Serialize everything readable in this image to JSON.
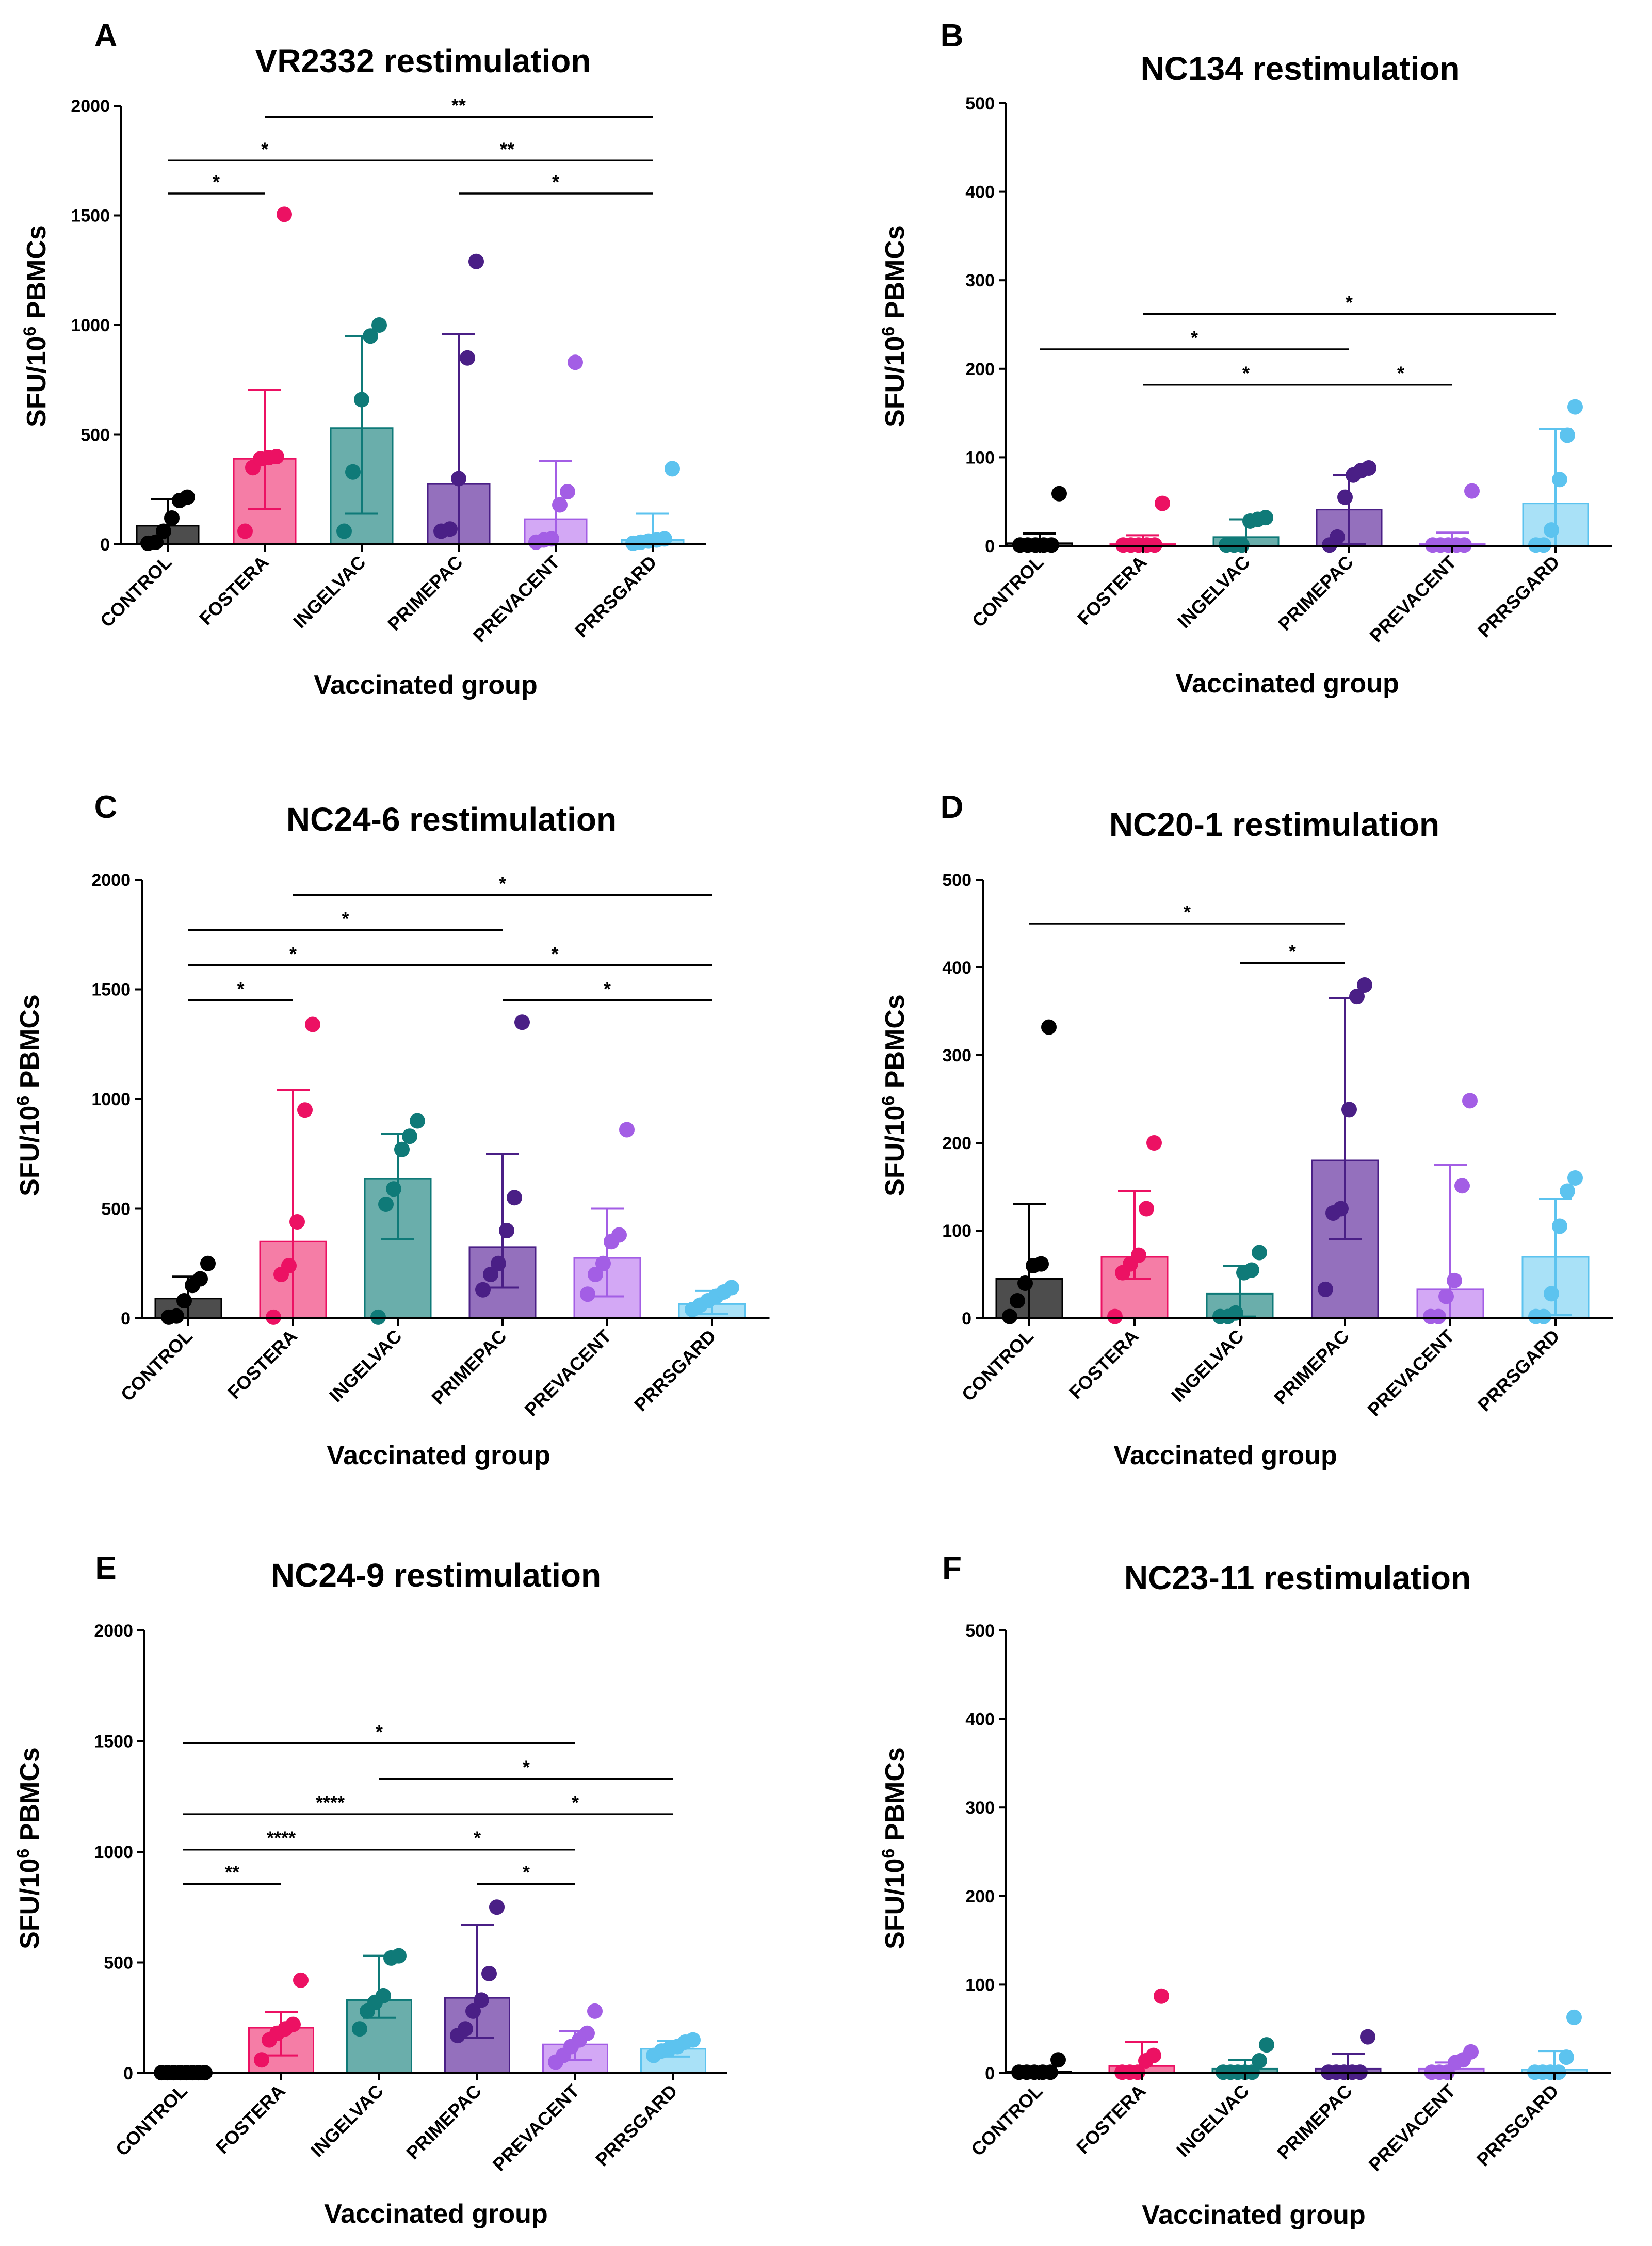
{
  "figure": {
    "x_axis_title": "Vaccinated group",
    "y_axis_title_base": "SFU/10",
    "y_axis_title_sup": "6",
    "y_axis_title_unit": " PBMCs"
  },
  "palette": {
    "CONTROL": {
      "bar": "#4d4d4d",
      "err": "#000000",
      "dot": "#000000"
    },
    "FOSTERA": {
      "bar": "#f57da6",
      "err": "#ec1163",
      "dot": "#ec1163"
    },
    "INGELVAC": {
      "bar": "#6aaeab",
      "err": "#0f7a78",
      "dot": "#0f7a78"
    },
    "PRIMEPAC": {
      "bar": "#9470bd",
      "err": "#4a1f86",
      "dot": "#4a1f86"
    },
    "PREVACENT": {
      "bar": "#d3a8f5",
      "err": "#a35ee5",
      "dot": "#a35ee5"
    },
    "PRRSGARD": {
      "bar": "#a9e1f7",
      "err": "#5cc3ef",
      "dot": "#5cc3ef"
    }
  },
  "chart_data": [
    {
      "panel": "A",
      "type": "bar",
      "title": "VR2332 restimulation",
      "xlabel": "Vaccinated group",
      "ylabel": "SFU/10^6 PBMCs",
      "ylim": [
        0,
        2000
      ],
      "yticks": [
        "0",
        "500",
        "1000",
        "1500",
        "2000"
      ],
      "categories": [
        "CONTROL",
        "FOSTERA",
        "INGELVAC",
        "PRIMEPAC",
        "PREVACENT",
        "PRRSGARD"
      ],
      "means": [
        85,
        390,
        530,
        275,
        115,
        20
      ],
      "err_upper": [
        205,
        705,
        950,
        960,
        380,
        140
      ],
      "err_lower": [
        0,
        160,
        140,
        0,
        0,
        0
      ],
      "points": [
        [
          5,
          10,
          60,
          120,
          200,
          215
        ],
        [
          60,
          350,
          390,
          395,
          400,
          1505
        ],
        [
          60,
          330,
          660,
          950,
          1000
        ],
        [
          60,
          70,
          300,
          850,
          1290
        ],
        [
          10,
          20,
          25,
          180,
          240,
          830
        ],
        [
          5,
          10,
          15,
          20,
          25,
          345
        ]
      ],
      "significance": [
        {
          "from": "FOSTERA",
          "to": "PRRSGARD",
          "label": "**",
          "value": 1950
        },
        {
          "from": "CONTROL",
          "to": "INGELVAC",
          "label": "*",
          "value": 1750
        },
        {
          "from": "INGELVAC",
          "to": "PRRSGARD",
          "label": "**",
          "value": 1750
        },
        {
          "from": "CONTROL",
          "to": "FOSTERA",
          "label": "*",
          "value": 1600
        },
        {
          "from": "PRIMEPAC",
          "to": "PRRSGARD",
          "label": "*",
          "value": 1600
        }
      ]
    },
    {
      "panel": "B",
      "type": "bar",
      "title": "NC134 restimulation",
      "xlabel": "Vaccinated group",
      "ylabel": "SFU/10^6 PBMCs",
      "ylim": [
        0,
        500
      ],
      "yticks": [
        "0",
        "100",
        "200",
        "300",
        "400",
        "500"
      ],
      "categories": [
        "CONTROL",
        "FOSTERA",
        "INGELVAC",
        "PRIMEPAC",
        "PREVACENT",
        "PRRSGARD"
      ],
      "means": [
        3,
        2,
        10,
        41,
        2,
        48
      ],
      "err_upper": [
        14,
        12,
        30,
        80,
        15,
        132
      ],
      "err_lower": [
        0,
        0,
        0,
        2,
        0,
        0
      ],
      "points": [
        [
          1,
          1,
          1,
          1,
          1,
          59
        ],
        [
          1,
          1,
          1,
          1,
          1,
          48
        ],
        [
          1,
          1,
          1,
          28,
          30,
          32
        ],
        [
          1,
          10,
          55,
          80,
          85,
          88
        ],
        [
          1,
          1,
          1,
          1,
          1,
          62
        ],
        [
          1,
          1,
          18,
          75,
          125,
          157
        ]
      ],
      "significance": [
        {
          "from": "FOSTERA",
          "to": "PRRSGARD",
          "label": "*",
          "value": 262
        },
        {
          "from": "CONTROL",
          "to": "PRIMEPAC",
          "label": "*",
          "value": 222
        },
        {
          "from": "FOSTERA",
          "to": "PRIMEPAC",
          "label": "*",
          "value": 182
        },
        {
          "from": "PRIMEPAC",
          "to": "PREVACENT",
          "label": "*",
          "value": 182
        }
      ]
    },
    {
      "panel": "C",
      "type": "bar",
      "title": "NC24-6 restimulation",
      "xlabel": "Vaccinated group",
      "ylabel": "SFU/10^6 PBMCs",
      "ylim": [
        0,
        2000
      ],
      "yticks": [
        "0",
        "500",
        "1000",
        "1500",
        "2000"
      ],
      "categories": [
        "CONTROL",
        "FOSTERA",
        "INGELVAC",
        "PRIMEPAC",
        "PREVACENT",
        "PRRSGARD"
      ],
      "means": [
        90,
        350,
        635,
        325,
        275,
        65
      ],
      "err_upper": [
        190,
        1040,
        840,
        750,
        500,
        125
      ],
      "err_lower": [
        0,
        0,
        360,
        140,
        100,
        20
      ],
      "points": [
        [
          5,
          10,
          80,
          150,
          180,
          250
        ],
        [
          5,
          200,
          240,
          440,
          950,
          1340
        ],
        [
          5,
          520,
          590,
          770,
          830,
          900
        ],
        [
          130,
          200,
          250,
          400,
          550,
          1350
        ],
        [
          110,
          200,
          250,
          350,
          380,
          860
        ],
        [
          40,
          60,
          80,
          100,
          120,
          140
        ]
      ],
      "significance": [
        {
          "from": "FOSTERA",
          "to": "PRRSGARD",
          "label": "*",
          "value": 1930
        },
        {
          "from": "CONTROL",
          "to": "PRIMEPAC",
          "label": "*",
          "value": 1770
        },
        {
          "from": "CONTROL",
          "to": "INGELVAC",
          "label": "*",
          "value": 1610
        },
        {
          "from": "INGELVAC",
          "to": "PRRSGARD",
          "label": "*",
          "value": 1610
        },
        {
          "from": "CONTROL",
          "to": "FOSTERA",
          "label": "*",
          "value": 1450
        },
        {
          "from": "PRIMEPAC",
          "to": "PRRSGARD",
          "label": "*",
          "value": 1450
        }
      ]
    },
    {
      "panel": "D",
      "type": "bar",
      "title": "NC20-1 restimulation",
      "xlabel": "Vaccinated group",
      "ylabel": "SFU/10^6 PBMCs",
      "ylim": [
        0,
        500
      ],
      "yticks": [
        "0",
        "100",
        "200",
        "300",
        "400",
        "500"
      ],
      "categories": [
        "CONTROL",
        "FOSTERA",
        "INGELVAC",
        "PRIMEPAC",
        "PREVACENT",
        "PRRSGARD"
      ],
      "means": [
        45,
        70,
        28,
        180,
        33,
        70
      ],
      "err_upper": [
        130,
        145,
        60,
        365,
        175,
        136
      ],
      "err_lower": [
        0,
        45,
        2,
        90,
        0,
        4
      ],
      "points": [
        [
          2,
          20,
          40,
          60,
          62,
          332
        ],
        [
          2,
          52,
          62,
          72,
          125,
          200
        ],
        [
          2,
          2,
          6,
          52,
          55,
          75
        ],
        [
          33,
          120,
          125,
          238,
          367,
          380
        ],
        [
          2,
          2,
          25,
          43,
          151,
          248
        ],
        [
          2,
          2,
          28,
          105,
          145,
          160
        ]
      ],
      "significance": [
        {
          "from": "CONTROL",
          "to": "PRIMEPAC",
          "label": "*",
          "value": 450
        },
        {
          "from": "INGELVAC",
          "to": "PRIMEPAC",
          "label": "*",
          "value": 405
        }
      ]
    },
    {
      "panel": "E",
      "type": "bar",
      "title": "NC24-9 restimulation",
      "xlabel": "Vaccinated group",
      "ylabel": "SFU/10^6 PBMCs",
      "ylim": [
        0,
        2000
      ],
      "yticks": [
        "0",
        "500",
        "1000",
        "1500",
        "2000"
      ],
      "categories": [
        "CONTROL",
        "FOSTERA",
        "INGELVAC",
        "PRIMEPAC",
        "PREVACENT",
        "PRRSGARD"
      ],
      "means": [
        2,
        205,
        330,
        340,
        130,
        110
      ],
      "err_upper": [
        5,
        275,
        530,
        670,
        190,
        145
      ],
      "err_lower": [
        0,
        80,
        250,
        160,
        60,
        75
      ],
      "points": [
        [
          2,
          2,
          2,
          2,
          2,
          2,
          2,
          2
        ],
        [
          60,
          150,
          180,
          200,
          220,
          420
        ],
        [
          200,
          280,
          320,
          350,
          520,
          530
        ],
        [
          170,
          200,
          280,
          330,
          450,
          750
        ],
        [
          50,
          80,
          120,
          150,
          180,
          280
        ],
        [
          80,
          100,
          110,
          120,
          140,
          150
        ]
      ],
      "significance": [
        {
          "from": "CONTROL",
          "to": "PREVACENT",
          "label": "*",
          "value": 1490
        },
        {
          "from": "INGELVAC",
          "to": "PRRSGARD",
          "label": "*",
          "value": 1330
        },
        {
          "from": "CONTROL",
          "to": "PRIMEPAC",
          "label": "****",
          "value": 1170
        },
        {
          "from": "PRIMEPAC",
          "to": "PRRSGARD",
          "label": "*",
          "value": 1170
        },
        {
          "from": "CONTROL",
          "to": "INGELVAC",
          "label": "****",
          "value": 1010
        },
        {
          "from": "INGELVAC",
          "to": "PREVACENT",
          "label": "*",
          "value": 1010
        },
        {
          "from": "CONTROL",
          "to": "FOSTERA",
          "label": "**",
          "value": 855
        },
        {
          "from": "PRIMEPAC",
          "to": "PREVACENT",
          "label": "*",
          "value": 855
        }
      ]
    },
    {
      "panel": "F",
      "type": "bar",
      "title": "NC23-11 restimulation",
      "xlabel": "Vaccinated group",
      "ylabel": "SFU/10^6 PBMCs",
      "ylim": [
        0,
        500
      ],
      "yticks": [
        "0",
        "100",
        "200",
        "300",
        "400",
        "500"
      ],
      "categories": [
        "CONTROL",
        "FOSTERA",
        "INGELVAC",
        "PRIMEPAC",
        "PREVACENT",
        "PRRSGARD"
      ],
      "means": [
        2,
        8,
        5,
        5,
        5,
        4
      ],
      "err_upper": [
        4,
        35,
        15,
        22,
        12,
        25
      ],
      "err_lower": [
        0,
        0,
        0,
        0,
        0,
        0
      ],
      "points": [
        [
          1,
          1,
          1,
          1,
          1,
          15
        ],
        [
          1,
          1,
          1,
          14,
          20,
          87
        ],
        [
          1,
          1,
          1,
          1,
          1,
          14,
          32
        ],
        [
          1,
          1,
          1,
          1,
          1,
          41
        ],
        [
          1,
          1,
          1,
          12,
          15,
          24
        ],
        [
          1,
          1,
          1,
          1,
          18,
          63
        ]
      ],
      "significance": []
    }
  ]
}
